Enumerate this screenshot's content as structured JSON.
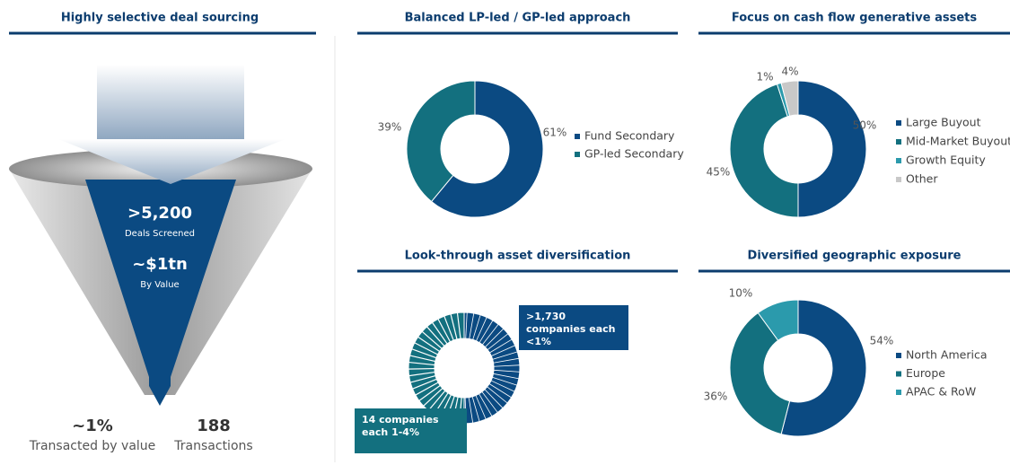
{
  "funnel": {
    "title": "Highly selective deal sourcing",
    "screened_value": ">5,200",
    "screened_label": "Deals Screened",
    "value": "~$1tn",
    "value_label": "By Value",
    "transacted_pct": "~1%",
    "transacted_label": "Transacted by value",
    "transactions": "188",
    "transactions_label": "Transactions"
  },
  "chart_data": [
    {
      "type": "donut",
      "title": "Balanced LP-led / GP-led approach",
      "categories": [
        "Fund Secondary",
        "GP-led Secondary"
      ],
      "values": [
        61,
        39
      ],
      "value_labels": [
        "61%",
        "39%"
      ],
      "colors": [
        "#0b4a82",
        "#13707f"
      ],
      "legend": "right"
    },
    {
      "type": "donut",
      "title": "Focus on cash flow generative assets",
      "categories": [
        "Large Buyout",
        "Mid-Market Buyout",
        "Growth Equity",
        "Other"
      ],
      "values": [
        50,
        45,
        1,
        4
      ],
      "value_labels": [
        "50%",
        "45%",
        "1%",
        "4%"
      ],
      "colors": [
        "#0b4a82",
        "#13707f",
        "#2b9aac",
        "#c8c8c8"
      ],
      "legend": "right"
    },
    {
      "type": "donut",
      "title": "Look-through asset diversification",
      "categories": [
        ">1,730 companies each <1%",
        "14 companies each 1-4%"
      ],
      "values": [
        50,
        50
      ],
      "colors": [
        "#0b4a82",
        "#13707f"
      ],
      "legend": "boxes"
    },
    {
      "type": "donut",
      "title": "Diversified geographic exposure",
      "categories": [
        "North America",
        "Europe",
        "APAC & RoW"
      ],
      "values": [
        54,
        36,
        10
      ],
      "value_labels": [
        "54%",
        "36%",
        "10%"
      ],
      "colors": [
        "#0b4a82",
        "#13707f",
        "#2b9aac"
      ],
      "legend": "right"
    }
  ]
}
